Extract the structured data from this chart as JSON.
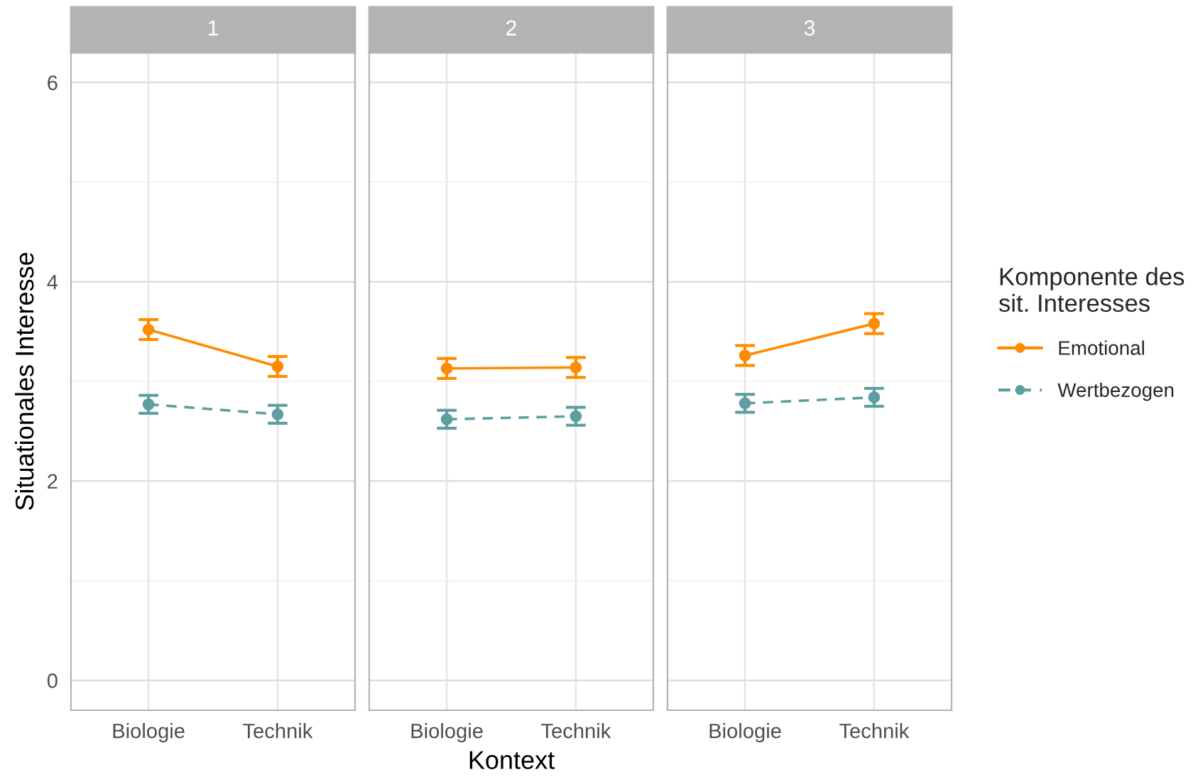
{
  "chart_data": [
    {
      "type": "line",
      "title": "1",
      "ylabel": "Situationales Interesse",
      "legend_title": "Komponente des\nsit. Interesses",
      "legend": "right",
      "categories": [
        "Biologie",
        "Technik"
      ],
      "ylim": [
        -0.3,
        6.3
      ],
      "yticks": [
        0,
        2,
        4,
        6
      ],
      "grid": true,
      "marker": "circle",
      "series": [
        {
          "name": "Emotional",
          "color": "#ff8c00",
          "line_style": "solid",
          "values": [
            3.52,
            3.15
          ],
          "errors": [
            0.1,
            0.1
          ]
        },
        {
          "name": "Wertbezogen",
          "color": "#5f9ea0",
          "line_style": "dashed",
          "values": [
            2.77,
            2.67
          ],
          "errors": [
            0.09,
            0.09
          ]
        }
      ]
    },
    {
      "type": "line",
      "title": "2",
      "xlabel": "Kontext",
      "categories": [
        "Biologie",
        "Technik"
      ],
      "ylim": [
        -0.3,
        6.3
      ],
      "yticks": [
        0,
        2,
        4,
        6
      ],
      "grid": true,
      "marker": "circle",
      "tick_labels": "x",
      "series": [
        {
          "color": "#ff8c00",
          "line_style": "solid",
          "values": [
            3.13,
            3.14
          ],
          "errors": [
            0.1,
            0.1
          ]
        },
        {
          "color": "#5f9ea0",
          "line_style": "dashed",
          "values": [
            2.62,
            2.65
          ],
          "errors": [
            0.09,
            0.09
          ]
        }
      ]
    },
    {
      "type": "line",
      "title": "3",
      "categories": [
        "Biologie",
        "Technik"
      ],
      "ylim": [
        -0.3,
        6.3
      ],
      "yticks": [
        0,
        2,
        4,
        6
      ],
      "grid": true,
      "marker": "circle",
      "tick_labels": "x",
      "series": [
        {
          "color": "#ff8c00",
          "line_style": "solid",
          "values": [
            3.26,
            3.58
          ],
          "errors": [
            0.1,
            0.1
          ]
        },
        {
          "color": "#5f9ea0",
          "line_style": "dashed",
          "values": [
            2.78,
            2.84
          ],
          "errors": [
            0.09,
            0.09
          ]
        }
      ]
    }
  ]
}
